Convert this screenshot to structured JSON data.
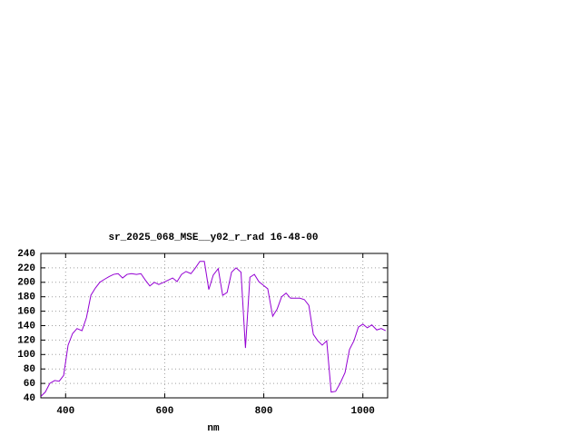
{
  "chart_data": {
    "type": "line",
    "title": "sr_2025_068_MSE__y02_r_rad 16-48-00",
    "x_label": "nm",
    "x": [
      350,
      359,
      368,
      378,
      387,
      396,
      405,
      414,
      423,
      433,
      442,
      451,
      460,
      469,
      478,
      488,
      497,
      506,
      515,
      524,
      533,
      543,
      552,
      561,
      570,
      579,
      588,
      598,
      607,
      616,
      625,
      634,
      643,
      653,
      662,
      671,
      680,
      689,
      698,
      708,
      717,
      726,
      735,
      744,
      754,
      763,
      772,
      781,
      790,
      799,
      808,
      818,
      827,
      836,
      845,
      854,
      863,
      873,
      882,
      891,
      900,
      909,
      918,
      927,
      936,
      945,
      954,
      964,
      973,
      982,
      991,
      1000,
      1009,
      1018,
      1028,
      1037,
      1046
    ],
    "series": [
      {
        "color": "#9400d3",
        "values": [
          42,
          48,
          60,
          64,
          63,
          71,
          113,
          129,
          136,
          133,
          151,
          182,
          192,
          200,
          204,
          208,
          211,
          212,
          206,
          211,
          212,
          211,
          212,
          203,
          195,
          200,
          197,
          200,
          203,
          206,
          201,
          211,
          215,
          212,
          220,
          229,
          229,
          190,
          210,
          219,
          182,
          186,
          214,
          220,
          214,
          109,
          207,
          211,
          201,
          196,
          191,
          153,
          163,
          180,
          185,
          178,
          178,
          178,
          176,
          168,
          128,
          119,
          113,
          119,
          48,
          49,
          60,
          75,
          107,
          119,
          138,
          142,
          137,
          141,
          134,
          136,
          133
        ]
      }
    ],
    "xlim": [
      350,
      1050
    ],
    "xticks": [
      400,
      600,
      800,
      1000
    ],
    "ylim": [
      40,
      240
    ],
    "yticks": [
      40,
      60,
      80,
      100,
      120,
      140,
      160,
      180,
      200,
      220,
      240
    ],
    "grid": true
  }
}
